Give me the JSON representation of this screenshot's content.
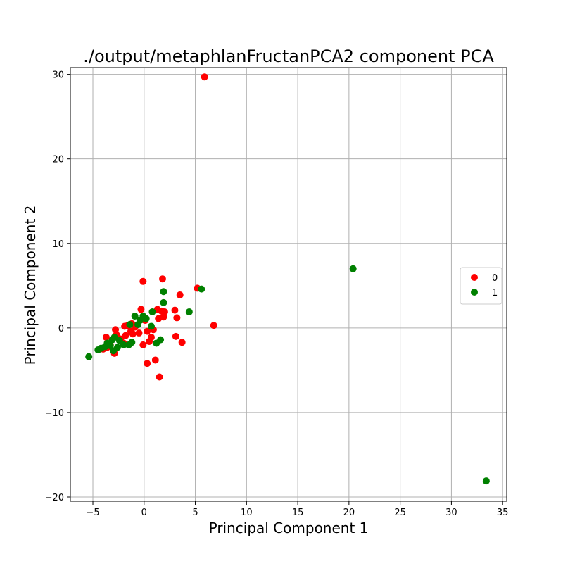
{
  "chart_data": {
    "type": "scatter",
    "title": "./output/metaphlanFructanPCA2 component PCA",
    "xlabel": "Principal Component 1",
    "ylabel": "Principal Component 2",
    "xlim": [
      -7.2,
      35.4
    ],
    "ylim": [
      -20.5,
      30.8
    ],
    "x_ticks": [
      {
        "value": -5,
        "label": "−5"
      },
      {
        "value": 0,
        "label": "0"
      },
      {
        "value": 5,
        "label": "5"
      },
      {
        "value": 10,
        "label": "10"
      },
      {
        "value": 15,
        "label": "15"
      },
      {
        "value": 20,
        "label": "20"
      },
      {
        "value": 25,
        "label": "25"
      },
      {
        "value": 30,
        "label": "30"
      },
      {
        "value": 35,
        "label": "35"
      }
    ],
    "y_ticks": [
      {
        "value": -20,
        "label": "−20"
      },
      {
        "value": -10,
        "label": "−10"
      },
      {
        "value": 0,
        "label": "0"
      },
      {
        "value": 10,
        "label": "10"
      },
      {
        "value": 20,
        "label": "20"
      },
      {
        "value": 30,
        "label": "30"
      }
    ],
    "grid": true,
    "legend_position": "center-right",
    "series": [
      {
        "name": "0",
        "color": "#ff0000",
        "points": [
          [
            5.9,
            29.7
          ],
          [
            6.8,
            0.3
          ],
          [
            1.8,
            5.8
          ],
          [
            -0.1,
            5.5
          ],
          [
            5.2,
            4.7
          ],
          [
            3.5,
            3.9
          ],
          [
            3.0,
            2.1
          ],
          [
            3.2,
            1.2
          ],
          [
            2.0,
            1.9
          ],
          [
            1.7,
            2.0
          ],
          [
            1.3,
            2.2
          ],
          [
            1.9,
            1.3
          ],
          [
            1.4,
            1.1
          ],
          [
            -0.3,
            2.2
          ],
          [
            3.7,
            -1.7
          ],
          [
            3.1,
            -1.0
          ],
          [
            1.1,
            -3.8
          ],
          [
            0.3,
            -4.2
          ],
          [
            1.5,
            -5.8
          ],
          [
            -0.1,
            -2.0
          ],
          [
            0.5,
            -1.6
          ],
          [
            0.7,
            -1.1
          ],
          [
            0.9,
            -0.2
          ],
          [
            0.3,
            -0.4
          ],
          [
            -0.5,
            -0.6
          ],
          [
            -0.9,
            0.1
          ],
          [
            -1.2,
            0.5
          ],
          [
            -1.6,
            0.3
          ],
          [
            -1.9,
            0.2
          ],
          [
            -1.3,
            -0.4
          ],
          [
            -1.8,
            -0.9
          ],
          [
            -2.3,
            -1.3
          ],
          [
            -2.7,
            -0.8
          ],
          [
            -2.8,
            -0.2
          ],
          [
            -2.9,
            -3.0
          ],
          [
            -3.3,
            -2.0
          ],
          [
            -3.6,
            -2.3
          ],
          [
            -4.0,
            -2.5
          ],
          [
            -3.7,
            -1.1
          ],
          [
            -2.0,
            -1.8
          ],
          [
            -1.1,
            -0.7
          ],
          [
            0.1,
            0.9
          ]
        ]
      },
      {
        "name": "1",
        "color": "#008000",
        "points": [
          [
            33.4,
            -18.1
          ],
          [
            20.4,
            7.0
          ],
          [
            5.6,
            4.6
          ],
          [
            1.9,
            4.3
          ],
          [
            1.9,
            3.0
          ],
          [
            4.4,
            1.9
          ],
          [
            0.8,
            1.9
          ],
          [
            0.7,
            0.2
          ],
          [
            0.2,
            1.1
          ],
          [
            -0.1,
            1.4
          ],
          [
            -0.4,
            0.9
          ],
          [
            -0.6,
            0.4
          ],
          [
            -0.9,
            1.4
          ],
          [
            -1.4,
            0.4
          ],
          [
            -1.2,
            -1.7
          ],
          [
            -1.5,
            -2.0
          ],
          [
            -2.0,
            -2.0
          ],
          [
            -2.4,
            -1.5
          ],
          [
            -2.9,
            -1.1
          ],
          [
            -3.1,
            -1.4
          ],
          [
            -3.3,
            -2.1
          ],
          [
            -3.6,
            -1.8
          ],
          [
            -3.8,
            -2.2
          ],
          [
            -4.2,
            -2.4
          ],
          [
            -4.5,
            -2.6
          ],
          [
            -5.4,
            -3.4
          ],
          [
            -2.6,
            -2.3
          ],
          [
            -3.0,
            -2.7
          ],
          [
            1.2,
            -1.8
          ],
          [
            1.6,
            -1.4
          ]
        ]
      }
    ]
  }
}
